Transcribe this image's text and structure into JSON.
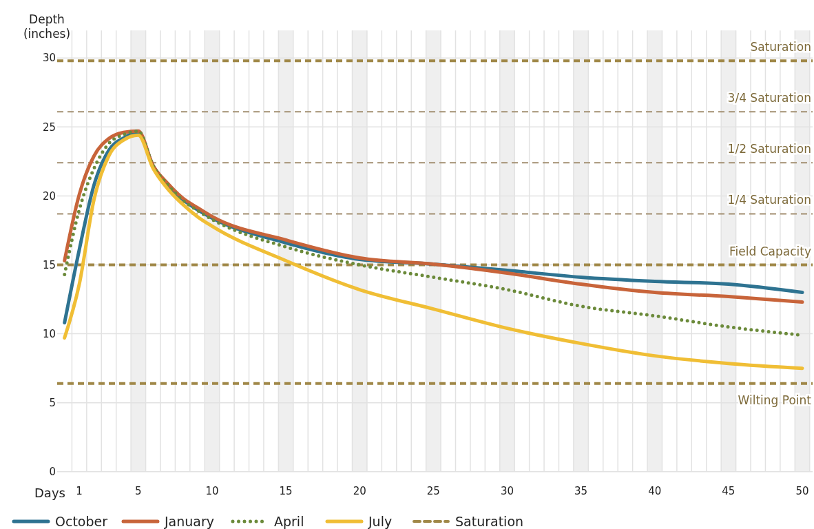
{
  "chart_data": {
    "type": "line",
    "xlabel": "Days",
    "ylabel": "Depth (inches)",
    "xlim": [
      -0.5,
      50.7
    ],
    "ylim": [
      0,
      32
    ],
    "xticks": [
      1,
      5,
      10,
      15,
      20,
      25,
      30,
      35,
      40,
      45,
      50
    ],
    "yticks": [
      0,
      5,
      10,
      15,
      20,
      25,
      30
    ],
    "grid": true,
    "legend": "bottom",
    "marker": "none",
    "line_style": "solid",
    "series": [
      {
        "name": "October",
        "color": "#2e7391",
        "x": [
          0,
          1,
          2,
          3,
          4,
          5,
          6,
          7,
          8,
          9,
          10,
          15,
          20,
          25,
          30,
          35,
          40,
          45,
          50
        ],
        "values": [
          10.8,
          16.1,
          20.8,
          23.3,
          24.2,
          24.6,
          22.2,
          20.8,
          19.75,
          19.0,
          18.4,
          16.6,
          15.4,
          15.05,
          14.6,
          14.1,
          13.8,
          13.6,
          13.0
        ]
      },
      {
        "name": "January",
        "color": "#c8643a",
        "x": [
          0,
          1,
          2,
          3,
          4,
          5,
          6,
          7,
          8,
          9,
          10,
          15,
          20,
          25,
          30,
          35,
          40,
          45,
          50
        ],
        "values": [
          15.3,
          20.1,
          22.9,
          24.15,
          24.6,
          24.7,
          22.2,
          20.9,
          19.85,
          19.15,
          18.5,
          16.8,
          15.5,
          15.05,
          14.4,
          13.6,
          13.0,
          12.7,
          12.3
        ]
      },
      {
        "name": "April",
        "color": "#6b8a3a",
        "line_style": "dotted",
        "x": [
          0,
          1,
          2,
          3,
          4,
          5,
          6,
          7,
          8,
          9,
          10,
          15,
          20,
          25,
          30,
          35,
          40,
          45,
          50
        ],
        "values": [
          14.3,
          19.0,
          22.0,
          23.8,
          24.45,
          24.7,
          22.2,
          20.8,
          19.7,
          18.95,
          18.3,
          16.3,
          15.0,
          14.1,
          13.2,
          12.0,
          11.3,
          10.5,
          9.9
        ]
      },
      {
        "name": "July",
        "color": "#f0be35",
        "x": [
          0,
          1,
          2,
          3,
          4,
          5,
          6,
          7,
          8,
          9,
          10,
          15,
          20,
          25,
          30,
          35,
          40,
          45,
          50
        ],
        "values": [
          9.7,
          13.6,
          19.75,
          22.9,
          24.05,
          24.4,
          22.0,
          20.5,
          19.4,
          18.5,
          17.8,
          15.3,
          13.2,
          11.8,
          10.4,
          9.3,
          8.4,
          7.85,
          7.5
        ]
      }
    ],
    "ref_lines": [
      {
        "axis": "y",
        "value": 29.8,
        "label": "Saturation",
        "color": "#a08848",
        "line_style": "dashed"
      },
      {
        "axis": "y",
        "value": 26.1,
        "label": "3/4 Saturation",
        "color": "#a39072",
        "line_style": "dashed"
      },
      {
        "axis": "y",
        "value": 22.4,
        "label": "1/2 Saturation",
        "color": "#a39072",
        "line_style": "dashed"
      },
      {
        "axis": "y",
        "value": 18.7,
        "label": "1/4 Saturation",
        "color": "#a39072",
        "line_style": "dashed"
      },
      {
        "axis": "y",
        "value": 15.0,
        "label": "Field Capacity",
        "color": "#a08848",
        "line_style": "dashed"
      },
      {
        "axis": "y",
        "value": 6.4,
        "label": "Wilting Point",
        "color": "#a08848",
        "line_style": "dashed"
      }
    ],
    "bands": [
      {
        "axis": "x",
        "from": 4.5,
        "to": 5.5,
        "color": "#efefef"
      },
      {
        "axis": "x",
        "from": 9.5,
        "to": 10.5,
        "color": "#efefef"
      },
      {
        "axis": "x",
        "from": 14.5,
        "to": 15.5,
        "color": "#efefef"
      },
      {
        "axis": "x",
        "from": 19.5,
        "to": 20.5,
        "color": "#efefef"
      },
      {
        "axis": "x",
        "from": 24.5,
        "to": 25.5,
        "color": "#efefef"
      },
      {
        "axis": "x",
        "from": 29.5,
        "to": 30.5,
        "color": "#efefef"
      },
      {
        "axis": "x",
        "from": 34.5,
        "to": 35.5,
        "color": "#efefef"
      },
      {
        "axis": "x",
        "from": 39.5,
        "to": 40.5,
        "color": "#efefef"
      },
      {
        "axis": "x",
        "from": 44.5,
        "to": 45.5,
        "color": "#efefef"
      },
      {
        "axis": "x",
        "from": 49.5,
        "to": 50.5,
        "color": "#efefef"
      }
    ]
  }
}
